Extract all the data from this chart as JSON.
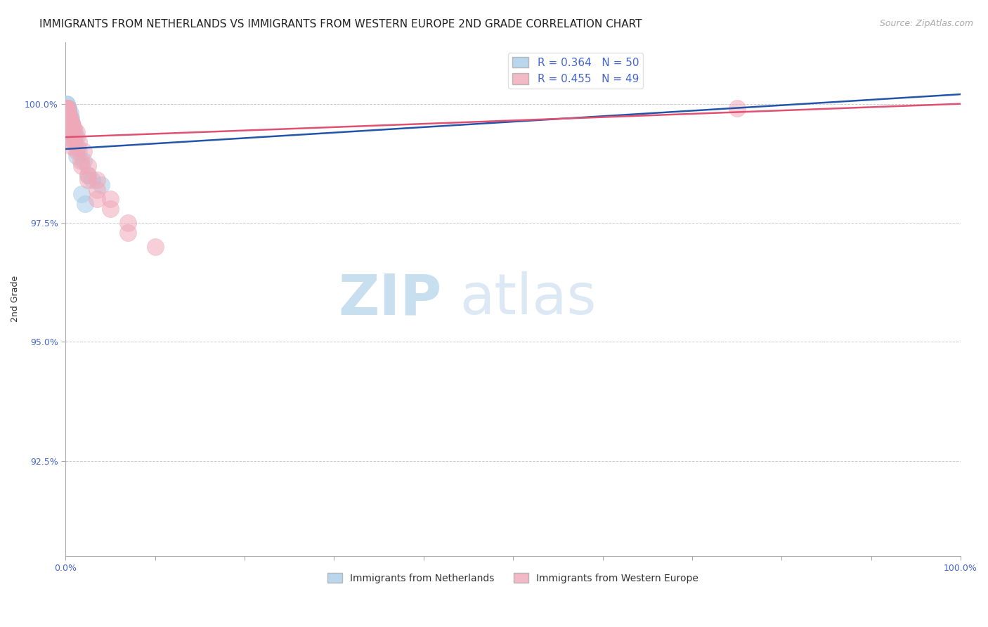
{
  "title": "IMMIGRANTS FROM NETHERLANDS VS IMMIGRANTS FROM WESTERN EUROPE 2ND GRADE CORRELATION CHART",
  "source_text": "Source: ZipAtlas.com",
  "ylabel": "2nd Grade",
  "x_tick_labels": [
    "0.0%",
    "100.0%"
  ],
  "y_tick_labels": [
    "92.5%",
    "95.0%",
    "97.5%",
    "100.0%"
  ],
  "y_tick_values": [
    0.925,
    0.95,
    0.975,
    1.0
  ],
  "x_ticks": [
    0.0,
    0.1,
    0.2,
    0.3,
    0.4,
    0.5,
    0.6,
    0.7,
    0.8,
    0.9,
    1.0
  ],
  "x_min": 0.0,
  "x_max": 1.0,
  "y_min": 0.905,
  "y_max": 1.013,
  "legend_blue_r": "R = 0.364",
  "legend_blue_n": "N = 50",
  "legend_pink_r": "R = 0.455",
  "legend_pink_n": "N = 49",
  "blue_color": "#a8cce8",
  "pink_color": "#f0a8b8",
  "blue_line_color": "#2255aa",
  "pink_line_color": "#e05070",
  "watermark_zip": "ZIP",
  "watermark_atlas": "atlas",
  "watermark_color": "#ddeeff",
  "blue_scatter_x": [
    0.001,
    0.002,
    0.001,
    0.003,
    0.002,
    0.001,
    0.004,
    0.002,
    0.003,
    0.001,
    0.002,
    0.003,
    0.002,
    0.001,
    0.005,
    0.003,
    0.001,
    0.004,
    0.003,
    0.002,
    0.001,
    0.006,
    0.003,
    0.002,
    0.001,
    0.007,
    0.004,
    0.003,
    0.002,
    0.001,
    0.008,
    0.005,
    0.003,
    0.01,
    0.006,
    0.004,
    0.003,
    0.012,
    0.007,
    0.005,
    0.015,
    0.009,
    0.006,
    0.02,
    0.012,
    0.025,
    0.03,
    0.018,
    0.022,
    0.04
  ],
  "blue_scatter_y": [
    0.999,
    0.999,
    1.0,
    0.999,
    0.998,
    0.999,
    0.998,
    0.999,
    0.999,
    1.0,
    0.998,
    0.998,
    0.999,
    0.999,
    0.998,
    0.999,
    0.998,
    0.997,
    0.998,
    0.999,
    0.999,
    0.997,
    0.998,
    0.998,
    0.999,
    0.996,
    0.997,
    0.998,
    0.999,
    0.998,
    0.995,
    0.996,
    0.997,
    0.994,
    0.995,
    0.996,
    0.997,
    0.993,
    0.994,
    0.995,
    0.99,
    0.992,
    0.993,
    0.988,
    0.989,
    0.985,
    0.984,
    0.981,
    0.979,
    0.983
  ],
  "pink_scatter_x": [
    0.001,
    0.002,
    0.001,
    0.003,
    0.002,
    0.001,
    0.004,
    0.003,
    0.002,
    0.001,
    0.005,
    0.003,
    0.002,
    0.007,
    0.004,
    0.003,
    0.002,
    0.009,
    0.006,
    0.004,
    0.003,
    0.012,
    0.008,
    0.006,
    0.004,
    0.015,
    0.01,
    0.007,
    0.005,
    0.02,
    0.013,
    0.009,
    0.006,
    0.025,
    0.017,
    0.012,
    0.008,
    0.035,
    0.025,
    0.018,
    0.05,
    0.035,
    0.025,
    0.07,
    0.05,
    0.035,
    0.1,
    0.07,
    0.75
  ],
  "pink_scatter_y": [
    0.999,
    0.998,
    0.999,
    0.998,
    0.999,
    0.999,
    0.997,
    0.998,
    0.999,
    0.999,
    0.997,
    0.998,
    0.998,
    0.996,
    0.997,
    0.997,
    0.998,
    0.995,
    0.996,
    0.997,
    0.997,
    0.994,
    0.995,
    0.996,
    0.996,
    0.992,
    0.993,
    0.994,
    0.995,
    0.99,
    0.991,
    0.992,
    0.993,
    0.987,
    0.988,
    0.99,
    0.991,
    0.984,
    0.985,
    0.987,
    0.98,
    0.982,
    0.984,
    0.975,
    0.978,
    0.98,
    0.97,
    0.973,
    0.999
  ],
  "title_fontsize": 11,
  "source_fontsize": 9,
  "axis_label_fontsize": 9,
  "tick_fontsize": 9,
  "legend_fontsize": 11,
  "marker_size": 300
}
